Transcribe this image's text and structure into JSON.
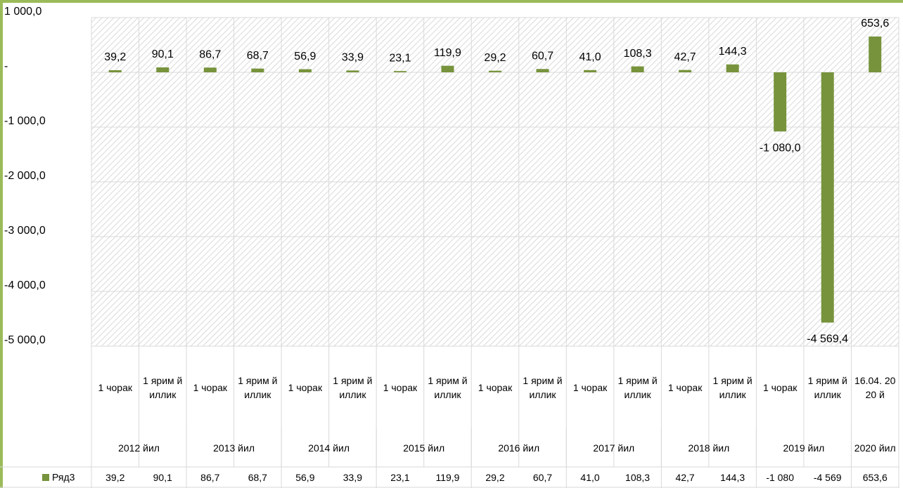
{
  "chart_data": {
    "type": "bar",
    "categories": [
      "1 чорак",
      "1 ярим йиллик",
      "1 чорак",
      "1 ярим йиллик",
      "1 чорак",
      "1 ярим йиллик",
      "1 чорак",
      "1 ярим йиллик",
      "1 чорак",
      "1 ярим йиллик",
      "1 чорак",
      "1 ярим йиллик",
      "1 чорак",
      "1 ярим йиллик",
      "1 чорак",
      "1 ярим йиллик",
      "16.04. 2020 й"
    ],
    "category_groups": [
      {
        "label": "2012 йил",
        "count": 2
      },
      {
        "label": "2013 йил",
        "count": 2
      },
      {
        "label": "2014 йил",
        "count": 2
      },
      {
        "label": "2015 йил",
        "count": 2
      },
      {
        "label": "2016 йил",
        "count": 2
      },
      {
        "label": "2017 йил",
        "count": 2
      },
      {
        "label": "2018 йил",
        "count": 2
      },
      {
        "label": "2019 йил",
        "count": 2
      },
      {
        "label": "2020 йил",
        "count": 1
      }
    ],
    "series": [
      {
        "name": "Ряд3",
        "color": "#77933c",
        "values": [
          39.2,
          90.1,
          86.7,
          68.7,
          56.9,
          33.9,
          23.1,
          119.9,
          29.2,
          60.7,
          41.0,
          108.3,
          42.7,
          144.3,
          -1080.0,
          -4569.4,
          653.6
        ],
        "value_labels": [
          "39,2",
          "90,1",
          "86,7",
          "68,7",
          "56,9",
          "33,9",
          "23,1",
          "119,9",
          "29,2",
          "60,7",
          "41,0",
          "108,3",
          "42,7",
          "144,3",
          "-1 080,0",
          "-4 569,4",
          "653,6"
        ],
        "table_labels": [
          "39,2",
          "90,1",
          "86,7",
          "68,7",
          "56,9",
          "33,9",
          "23,1",
          "119,9",
          "29,2",
          "60,7",
          "41,0",
          "108,3",
          "42,7",
          "144,3",
          "-1 080",
          "-4 569",
          "653,6"
        ]
      }
    ],
    "ylim": [
      -5000,
      1000
    ],
    "yticks": [
      {
        "value": 1000,
        "label": "1 000,0"
      },
      {
        "value": 0,
        "label": "-"
      },
      {
        "value": -1000,
        "label": "-1 000,0"
      },
      {
        "value": -2000,
        "label": "-2 000,0"
      },
      {
        "value": -3000,
        "label": "-3 000,0"
      },
      {
        "value": -4000,
        "label": "-4 000,0"
      },
      {
        "value": -5000,
        "label": "-5 000,0"
      }
    ],
    "grid": true
  }
}
